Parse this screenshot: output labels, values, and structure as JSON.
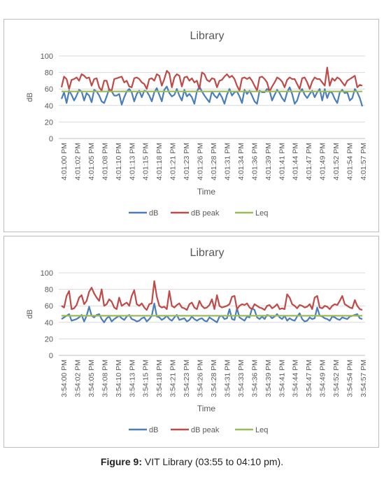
{
  "caption": {
    "label": "Figure 9:",
    "text": "VIT Library (03:55 to 04:10 pm)."
  },
  "chart_data": [
    {
      "type": "line",
      "title": "Library",
      "xlabel": "Time",
      "ylabel": "dB",
      "ylim": [
        0,
        100
      ],
      "yticks": [
        0,
        20,
        40,
        60,
        80,
        100
      ],
      "grid": true,
      "legend_position": "bottom",
      "xtick_labels": [
        "4:01:00 PM",
        "4:01:02 PM",
        "4:01:05 PM",
        "4:01:08 PM",
        "4:01:10 PM",
        "4:01:13 PM",
        "4:01:15 PM",
        "4:01:18 PM",
        "4:01:21 PM",
        "4:01:23 PM",
        "4:01:26 PM",
        "4:01:28 PM",
        "4:01:31 PM",
        "4:01:34 PM",
        "4:01:36 PM",
        "4:01:39 PM",
        "4:01:41 PM",
        "4:01:44 PM",
        "4:01:47 PM",
        "4:01:49 PM",
        "4:01:52 PM",
        "4:01:54 PM",
        "4:01:57 PM"
      ],
      "series": [
        {
          "name": "dB",
          "color": "#4a7ebb",
          "values": [
            48,
            56,
            43,
            58,
            53,
            46,
            52,
            59,
            57,
            46,
            55,
            52,
            44,
            59,
            57,
            52,
            45,
            43,
            51,
            60,
            57,
            52,
            52,
            54,
            41,
            50,
            57,
            60,
            56,
            45,
            54,
            58,
            50,
            58,
            57,
            52,
            45,
            56,
            61,
            53,
            45,
            59,
            63,
            55,
            51,
            53,
            60,
            52,
            46,
            59,
            51,
            54,
            50,
            42,
            57,
            63,
            57,
            52,
            48,
            44,
            57,
            52,
            49,
            55,
            50,
            42,
            53,
            60,
            52,
            56,
            57,
            51,
            43,
            59,
            54,
            58,
            52,
            45,
            42,
            58,
            56,
            56,
            60,
            58,
            46,
            53,
            59,
            55,
            49,
            45,
            56,
            62,
            54,
            42,
            46,
            56,
            60,
            53,
            49,
            54,
            58,
            50,
            56,
            60,
            46,
            60,
            49,
            57,
            55,
            48,
            43,
            56,
            59,
            55,
            56,
            46,
            49,
            60,
            56,
            49,
            39
          ]
        },
        {
          "name": "dB peak",
          "color": "#be4b48",
          "values": [
            62,
            75,
            72,
            60,
            71,
            72,
            74,
            70,
            78,
            76,
            73,
            74,
            64,
            72,
            73,
            62,
            58,
            70,
            70,
            59,
            58,
            72,
            73,
            74,
            75,
            68,
            70,
            63,
            62,
            73,
            74,
            72,
            68,
            66,
            60,
            72,
            73,
            70,
            78,
            76,
            64,
            72,
            82,
            79,
            62,
            74,
            78,
            76,
            63,
            74,
            75,
            70,
            73,
            68,
            70,
            60,
            80,
            78,
            71,
            69,
            73,
            72,
            62,
            70,
            71,
            75,
            78,
            74,
            76,
            72,
            64,
            58,
            73,
            74,
            72,
            74,
            70,
            64,
            58,
            74,
            75,
            72,
            68,
            57,
            63,
            68,
            74,
            72,
            69,
            62,
            71,
            74,
            72,
            72,
            66,
            60,
            73,
            74,
            68,
            60,
            69,
            74,
            72,
            72,
            68,
            64,
            86,
            64,
            73,
            70,
            74,
            72,
            68,
            64,
            70,
            72,
            74,
            76,
            62,
            65,
            64
          ]
        },
        {
          "name": "Leq",
          "color": "#9bbb59",
          "values": [
            57,
            57,
            57,
            57,
            57,
            57,
            57,
            57,
            57,
            57,
            57,
            57,
            57,
            57,
            57,
            57,
            57,
            57,
            57,
            57,
            57,
            57,
            57,
            57,
            57,
            57,
            57,
            57,
            57,
            57,
            57,
            57,
            57,
            57,
            57,
            57,
            57,
            57,
            57,
            57,
            57,
            57,
            57,
            57,
            57,
            57,
            57,
            57,
            57,
            57,
            57,
            57,
            57,
            57,
            57,
            57,
            57,
            57,
            57,
            57,
            57,
            57,
            57,
            57,
            57,
            57,
            57,
            57,
            57,
            57,
            57,
            57,
            57,
            57,
            57,
            57,
            57,
            57,
            57,
            57,
            57,
            57,
            57,
            57,
            57,
            57,
            57,
            57,
            57,
            57,
            57,
            57,
            57,
            57,
            57,
            57,
            57,
            57,
            57,
            57,
            57,
            57,
            57,
            57,
            57,
            57,
            57,
            57,
            57,
            57,
            57,
            57,
            57,
            57,
            57,
            57,
            57,
            57,
            57,
            57,
            57
          ]
        }
      ]
    },
    {
      "type": "line",
      "title": "Library",
      "xlabel": "Time",
      "ylabel": "dB",
      "ylim": [
        0,
        100
      ],
      "yticks": [
        0,
        20,
        40,
        60,
        80,
        100
      ],
      "grid": true,
      "legend_position": "bottom",
      "xtick_labels": [
        "3:54:00 PM",
        "3:54:02 PM",
        "3:54:05 PM",
        "3:54:08 PM",
        "3:54:10 PM",
        "3:54:13 PM",
        "3:54:15 PM",
        "3:54:18 PM",
        "3:54:21 PM",
        "3:54:23 PM",
        "3:54:26 PM",
        "3:54:28 PM",
        "3:54:31 PM",
        "3:54:33 PM",
        "3:54:36 PM",
        "3:54:39 PM",
        "3:54:41 PM",
        "3:54:44 PM",
        "3:54:47 PM",
        "3:54:49 PM",
        "3:54:52 PM",
        "3:54:54 PM",
        "3:54:57 PM"
      ],
      "series": [
        {
          "name": "dB",
          "color": "#4a7ebb",
          "values": [
            44,
            46,
            48,
            50,
            42,
            43,
            44,
            46,
            49,
            41,
            48,
            59,
            48,
            46,
            49,
            50,
            44,
            40,
            45,
            47,
            41,
            44,
            46,
            48,
            45,
            43,
            47,
            49,
            44,
            43,
            41,
            42,
            45,
            46,
            41,
            44,
            48,
            63,
            47,
            46,
            43,
            45,
            48,
            44,
            42,
            46,
            49,
            43,
            44,
            45,
            41,
            43,
            47,
            44,
            42,
            44,
            45,
            42,
            41,
            46,
            44,
            42,
            40,
            47,
            48,
            44,
            45,
            56,
            44,
            43,
            57,
            46,
            44,
            42,
            47,
            46,
            57,
            55,
            46,
            44,
            47,
            44,
            49,
            48,
            45,
            47,
            50,
            46,
            44,
            48,
            42,
            45,
            43,
            42,
            47,
            51,
            44,
            41,
            42,
            46,
            44,
            45,
            58,
            48,
            47,
            45,
            44,
            42,
            47,
            46,
            44,
            43,
            46,
            45,
            44,
            47,
            48,
            49,
            50,
            45,
            44
          ]
        },
        {
          "name": "dB peak",
          "color": "#be4b48",
          "values": [
            60,
            58,
            72,
            78,
            56,
            57,
            61,
            70,
            73,
            62,
            66,
            77,
            82,
            75,
            70,
            66,
            80,
            60,
            62,
            68,
            65,
            58,
            56,
            70,
            60,
            62,
            64,
            60,
            72,
            79,
            62,
            60,
            63,
            58,
            55,
            62,
            63,
            90,
            71,
            60,
            58,
            59,
            56,
            78,
            60,
            58,
            61,
            63,
            58,
            57,
            55,
            62,
            64,
            58,
            56,
            66,
            60,
            57,
            58,
            61,
            68,
            56,
            73,
            60,
            58,
            59,
            60,
            62,
            71,
            72,
            56,
            60,
            62,
            61,
            63,
            58,
            56,
            62,
            60,
            58,
            57,
            55,
            60,
            61,
            57,
            59,
            62,
            56,
            57,
            56,
            74,
            70,
            62,
            60,
            57,
            61,
            60,
            58,
            59,
            62,
            56,
            70,
            72,
            58,
            57,
            60,
            59,
            56,
            60,
            62,
            61,
            66,
            72,
            62,
            60,
            58,
            57,
            67,
            60,
            56,
            55
          ]
        },
        {
          "name": "Leq",
          "color": "#9bbb59",
          "values": [
            48,
            48,
            48,
            48,
            48,
            48,
            48,
            48,
            48,
            48,
            48,
            48,
            48,
            48,
            48,
            48,
            48,
            48,
            48,
            48,
            48,
            48,
            48,
            48,
            48,
            48,
            48,
            48,
            48,
            48,
            48,
            48,
            48,
            48,
            48,
            48,
            48,
            48,
            48,
            48,
            48,
            48,
            48,
            48,
            48,
            48,
            48,
            48,
            48,
            48,
            48,
            48,
            48,
            48,
            48,
            48,
            48,
            48,
            48,
            48,
            48,
            48,
            48,
            48,
            48,
            48,
            48,
            48,
            48,
            48,
            48,
            48,
            48,
            48,
            48,
            48,
            48,
            48,
            48,
            48,
            48,
            48,
            48,
            48,
            48,
            48,
            48,
            48,
            48,
            48,
            48,
            48,
            48,
            48,
            48,
            48,
            48,
            48,
            48,
            48,
            48,
            48,
            48,
            48,
            48,
            48,
            48,
            48,
            48,
            48,
            48,
            48,
            48,
            48,
            48,
            48,
            48,
            48,
            48,
            48,
            48
          ]
        }
      ]
    }
  ]
}
